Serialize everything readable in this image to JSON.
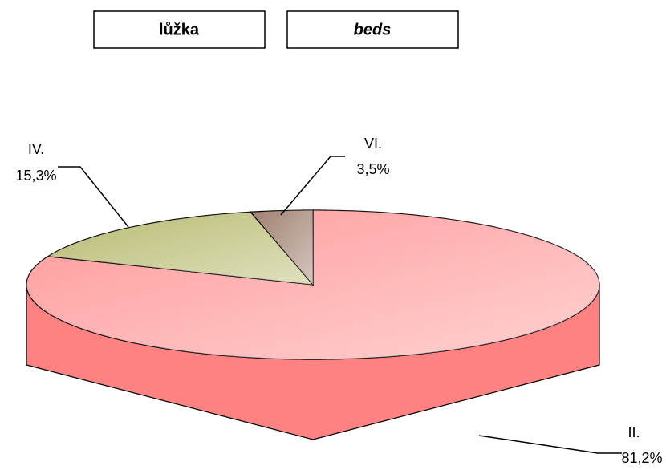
{
  "chart_data": {
    "type": "pie",
    "title": "lůžka",
    "subtitle": "beds",
    "categories": [
      "II.",
      "IV.",
      "VI."
    ],
    "values": [
      81.2,
      15.3,
      3.5
    ],
    "value_labels": [
      "81,2%",
      "15,3%",
      "3,5%"
    ],
    "colors": [
      "#ff9a9a",
      "#b8bb70",
      "#a08070"
    ],
    "side_colors": [
      "#ff8282",
      "#8a8c48",
      "#6a4636"
    ]
  }
}
